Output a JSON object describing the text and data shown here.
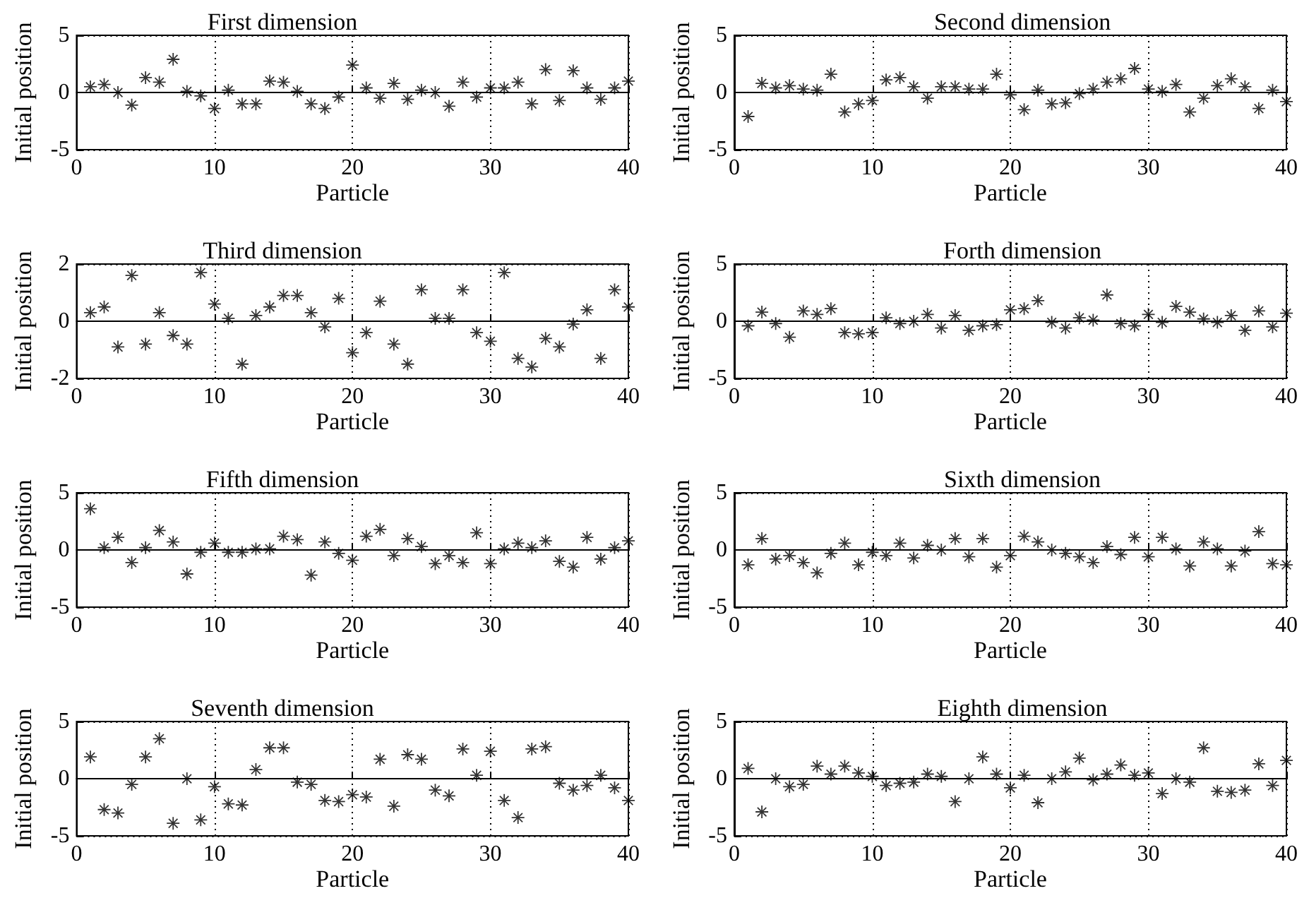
{
  "chart_data": [
    {
      "type": "scatter",
      "title": "First dimension",
      "xlabel": "Particle",
      "ylabel": "Initial position",
      "xlim": [
        0,
        40
      ],
      "xticks": [
        0,
        10,
        20,
        30,
        40
      ],
      "ylim": [
        -5,
        5
      ],
      "yticks": [
        -5,
        0,
        5
      ],
      "grid": true,
      "marker": "star",
      "x": [
        1,
        2,
        3,
        4,
        5,
        6,
        7,
        8,
        9,
        10,
        11,
        12,
        13,
        14,
        15,
        16,
        17,
        18,
        19,
        20,
        21,
        22,
        23,
        24,
        25,
        26,
        27,
        28,
        29,
        30,
        31,
        32,
        33,
        34,
        35,
        36,
        37,
        38,
        39,
        40
      ],
      "series": [
        {
          "color": "#000000",
          "values": [
            0.5,
            0.7,
            0,
            -1.1,
            1.3,
            0.9,
            2.9,
            0.1,
            -0.3,
            -1.4,
            0.2,
            -1,
            -1,
            1,
            0.9,
            0.1,
            -1,
            -1.4,
            -0.4,
            2.4,
            0.4,
            -0.5,
            0.8,
            -0.6,
            0.2,
            0,
            -1.2,
            0.9,
            -0.4,
            0.4,
            0.4,
            0.9,
            -1,
            2,
            -0.7,
            1.9,
            0.4,
            -0.6,
            0.4,
            1
          ]
        }
      ]
    },
    {
      "type": "scatter",
      "title": "Second dimension",
      "xlabel": "Particle",
      "ylabel": "Initial position",
      "xlim": [
        0,
        40
      ],
      "xticks": [
        0,
        10,
        20,
        30,
        40
      ],
      "ylim": [
        -5,
        5
      ],
      "yticks": [
        -5,
        0,
        5
      ],
      "grid": true,
      "marker": "star",
      "x": [
        1,
        2,
        3,
        4,
        5,
        6,
        7,
        8,
        9,
        10,
        11,
        12,
        13,
        14,
        15,
        16,
        17,
        18,
        19,
        20,
        21,
        22,
        23,
        24,
        25,
        26,
        27,
        28,
        29,
        30,
        31,
        32,
        33,
        34,
        35,
        36,
        37,
        38,
        39,
        40
      ],
      "series": [
        {
          "color": "#000000",
          "values": [
            -2.1,
            0.8,
            0.4,
            0.6,
            0.3,
            0.2,
            1.6,
            -1.7,
            -1,
            -0.7,
            1.1,
            1.3,
            0.5,
            -0.5,
            0.5,
            0.5,
            0.3,
            0.3,
            1.6,
            -0.2,
            -1.5,
            0.2,
            -1,
            -0.9,
            -0.1,
            0.3,
            0.9,
            1.2,
            2.1,
            0.3,
            0.1,
            0.7,
            -1.7,
            -0.5,
            0.6,
            1.2,
            0.5,
            -1.4,
            0.2,
            -0.8
          ]
        }
      ]
    },
    {
      "type": "scatter",
      "title": "Third dimension",
      "xlabel": "Particle",
      "ylabel": "Initial position",
      "xlim": [
        0,
        40
      ],
      "xticks": [
        0,
        10,
        20,
        30,
        40
      ],
      "ylim": [
        -2,
        2
      ],
      "yticks": [
        -2,
        0,
        2
      ],
      "grid": true,
      "marker": "star",
      "x": [
        1,
        2,
        3,
        4,
        5,
        6,
        7,
        8,
        9,
        10,
        11,
        12,
        13,
        14,
        15,
        16,
        17,
        18,
        19,
        20,
        21,
        22,
        23,
        24,
        25,
        26,
        27,
        28,
        29,
        30,
        31,
        32,
        33,
        34,
        35,
        36,
        37,
        38,
        39,
        40
      ],
      "series": [
        {
          "color": "#000000",
          "values": [
            0.3,
            0.5,
            -0.9,
            1.6,
            -0.8,
            0.3,
            -0.5,
            -0.8,
            1.7,
            0.6,
            0.1,
            -1.5,
            0.2,
            0.5,
            0.9,
            0.9,
            0.3,
            -0.2,
            0.8,
            -1.1,
            -0.4,
            0.7,
            -0.8,
            -1.5,
            1.1,
            0.1,
            0.1,
            1.1,
            -0.4,
            -0.7,
            1.7,
            -1.3,
            -1.6,
            -0.6,
            -0.9,
            -0.1,
            0.4,
            -1.3,
            1.1,
            0.5
          ]
        }
      ]
    },
    {
      "type": "scatter",
      "title": "Forth dimension",
      "xlabel": "Particle",
      "ylabel": "Initial position",
      "xlim": [
        0,
        40
      ],
      "xticks": [
        0,
        10,
        20,
        30,
        40
      ],
      "ylim": [
        -5,
        5
      ],
      "yticks": [
        -5,
        0,
        5
      ],
      "grid": true,
      "marker": "star",
      "x": [
        1,
        2,
        3,
        4,
        5,
        6,
        7,
        8,
        9,
        10,
        11,
        12,
        13,
        14,
        15,
        16,
        17,
        18,
        19,
        20,
        21,
        22,
        23,
        24,
        25,
        26,
        27,
        28,
        29,
        30,
        31,
        32,
        33,
        34,
        35,
        36,
        37,
        38,
        39,
        40
      ],
      "series": [
        {
          "color": "#000000",
          "values": [
            -0.4,
            0.8,
            -0.2,
            -1.4,
            0.9,
            0.6,
            1.1,
            -1,
            -1.1,
            -1,
            0.3,
            -0.2,
            0,
            0.6,
            -0.6,
            0.5,
            -0.8,
            -0.4,
            -0.3,
            1,
            1.1,
            1.8,
            -0.1,
            -0.6,
            0.3,
            0.1,
            2.3,
            -0.2,
            -0.4,
            0.6,
            -0.1,
            1.3,
            0.8,
            0.2,
            -0.1,
            0.5,
            -0.8,
            0.9,
            -0.5,
            0.7
          ]
        }
      ]
    },
    {
      "type": "scatter",
      "title": "Fifth dimension",
      "xlabel": "Particle",
      "ylabel": "Initial position",
      "xlim": [
        0,
        40
      ],
      "xticks": [
        0,
        10,
        20,
        30,
        40
      ],
      "ylim": [
        -5,
        5
      ],
      "yticks": [
        -5,
        0,
        5
      ],
      "grid": true,
      "marker": "star",
      "x": [
        1,
        2,
        3,
        4,
        5,
        6,
        7,
        8,
        9,
        10,
        11,
        12,
        13,
        14,
        15,
        16,
        17,
        18,
        19,
        20,
        21,
        22,
        23,
        24,
        25,
        26,
        27,
        28,
        29,
        30,
        31,
        32,
        33,
        34,
        35,
        36,
        37,
        38,
        39,
        40
      ],
      "series": [
        {
          "color": "#000000",
          "values": [
            3.6,
            0.2,
            1.1,
            -1.1,
            0.2,
            1.7,
            0.7,
            -2.1,
            -0.2,
            0.6,
            -0.2,
            -0.2,
            0.1,
            0.1,
            1.2,
            0.9,
            -2.2,
            0.7,
            -0.3,
            -0.9,
            1.2,
            1.8,
            -0.5,
            1,
            0.3,
            -1.2,
            -0.5,
            -1.1,
            1.5,
            -1.2,
            0.1,
            0.6,
            0.2,
            0.8,
            -1,
            -1.5,
            1.1,
            -0.8,
            0.2,
            0.8
          ]
        }
      ]
    },
    {
      "type": "scatter",
      "title": "Sixth dimension",
      "xlabel": "Particle",
      "ylabel": "Initial position",
      "xlim": [
        0,
        40
      ],
      "xticks": [
        0,
        10,
        20,
        30,
        40
      ],
      "ylim": [
        -5,
        5
      ],
      "yticks": [
        -5,
        0,
        5
      ],
      "grid": true,
      "marker": "star",
      "x": [
        1,
        2,
        3,
        4,
        5,
        6,
        7,
        8,
        9,
        10,
        11,
        12,
        13,
        14,
        15,
        16,
        17,
        18,
        19,
        20,
        21,
        22,
        23,
        24,
        25,
        26,
        27,
        28,
        29,
        30,
        31,
        32,
        33,
        34,
        35,
        36,
        37,
        38,
        39,
        40
      ],
      "series": [
        {
          "color": "#000000",
          "values": [
            -1.3,
            1,
            -0.8,
            -0.5,
            -1.1,
            -2,
            -0.3,
            0.6,
            -1.3,
            -0.2,
            -0.5,
            0.6,
            -0.7,
            0.4,
            0,
            1,
            -0.6,
            1,
            -1.5,
            -0.5,
            1.2,
            0.7,
            0,
            -0.3,
            -0.6,
            -1.1,
            0.3,
            -0.4,
            1.1,
            -0.6,
            1.1,
            0.1,
            -1.4,
            0.7,
            0.1,
            -1.4,
            -0.1,
            1.6,
            -1.2,
            -1.3
          ]
        }
      ]
    },
    {
      "type": "scatter",
      "title": "Seventh dimension",
      "xlabel": "Particle",
      "ylabel": "Initial position",
      "xlim": [
        0,
        40
      ],
      "xticks": [
        0,
        10,
        20,
        30,
        40
      ],
      "ylim": [
        -5,
        5
      ],
      "yticks": [
        -5,
        0,
        5
      ],
      "grid": true,
      "marker": "star",
      "x": [
        1,
        2,
        3,
        4,
        5,
        6,
        7,
        8,
        9,
        10,
        11,
        12,
        13,
        14,
        15,
        16,
        17,
        18,
        19,
        20,
        21,
        22,
        23,
        24,
        25,
        26,
        27,
        28,
        29,
        30,
        31,
        32,
        33,
        34,
        35,
        36,
        37,
        38,
        39,
        40
      ],
      "series": [
        {
          "color": "#000000",
          "values": [
            1.9,
            -2.7,
            -3,
            -0.5,
            1.9,
            3.5,
            -3.9,
            0,
            -3.6,
            -0.7,
            -2.2,
            -2.3,
            0.8,
            2.7,
            2.7,
            -0.3,
            -0.5,
            -1.9,
            -2,
            -1.4,
            -1.6,
            1.7,
            -2.4,
            2.1,
            1.7,
            -1,
            -1.5,
            2.6,
            0.3,
            2.4,
            -1.9,
            -3.4,
            2.6,
            2.8,
            -0.4,
            -1,
            -0.6,
            0.3,
            -0.8,
            -1.9
          ]
        }
      ]
    },
    {
      "type": "scatter",
      "title": "Eighth dimension",
      "xlabel": "Particle",
      "ylabel": "Initial position",
      "xlim": [
        0,
        40
      ],
      "xticks": [
        0,
        10,
        20,
        30,
        40
      ],
      "ylim": [
        -5,
        5
      ],
      "yticks": [
        -5,
        0,
        5
      ],
      "grid": true,
      "marker": "star",
      "x": [
        1,
        2,
        3,
        4,
        5,
        6,
        7,
        8,
        9,
        10,
        11,
        12,
        13,
        14,
        15,
        16,
        17,
        18,
        19,
        20,
        21,
        22,
        23,
        24,
        25,
        26,
        27,
        28,
        29,
        30,
        31,
        32,
        33,
        34,
        35,
        36,
        37,
        38,
        39,
        40
      ],
      "series": [
        {
          "color": "#000000",
          "values": [
            0.9,
            -2.9,
            0,
            -0.7,
            -0.5,
            1.1,
            0.4,
            1.1,
            0.5,
            0.2,
            -0.6,
            -0.4,
            -0.3,
            0.4,
            0.2,
            -2,
            0,
            1.9,
            0.4,
            -0.8,
            0.3,
            -2.1,
            0,
            0.6,
            1.8,
            -0.1,
            0.4,
            1.2,
            0.3,
            0.5,
            -1.3,
            0,
            -0.3,
            2.7,
            -1.1,
            -1.2,
            -1,
            1.3,
            -0.6,
            1.6
          ]
        }
      ]
    }
  ]
}
